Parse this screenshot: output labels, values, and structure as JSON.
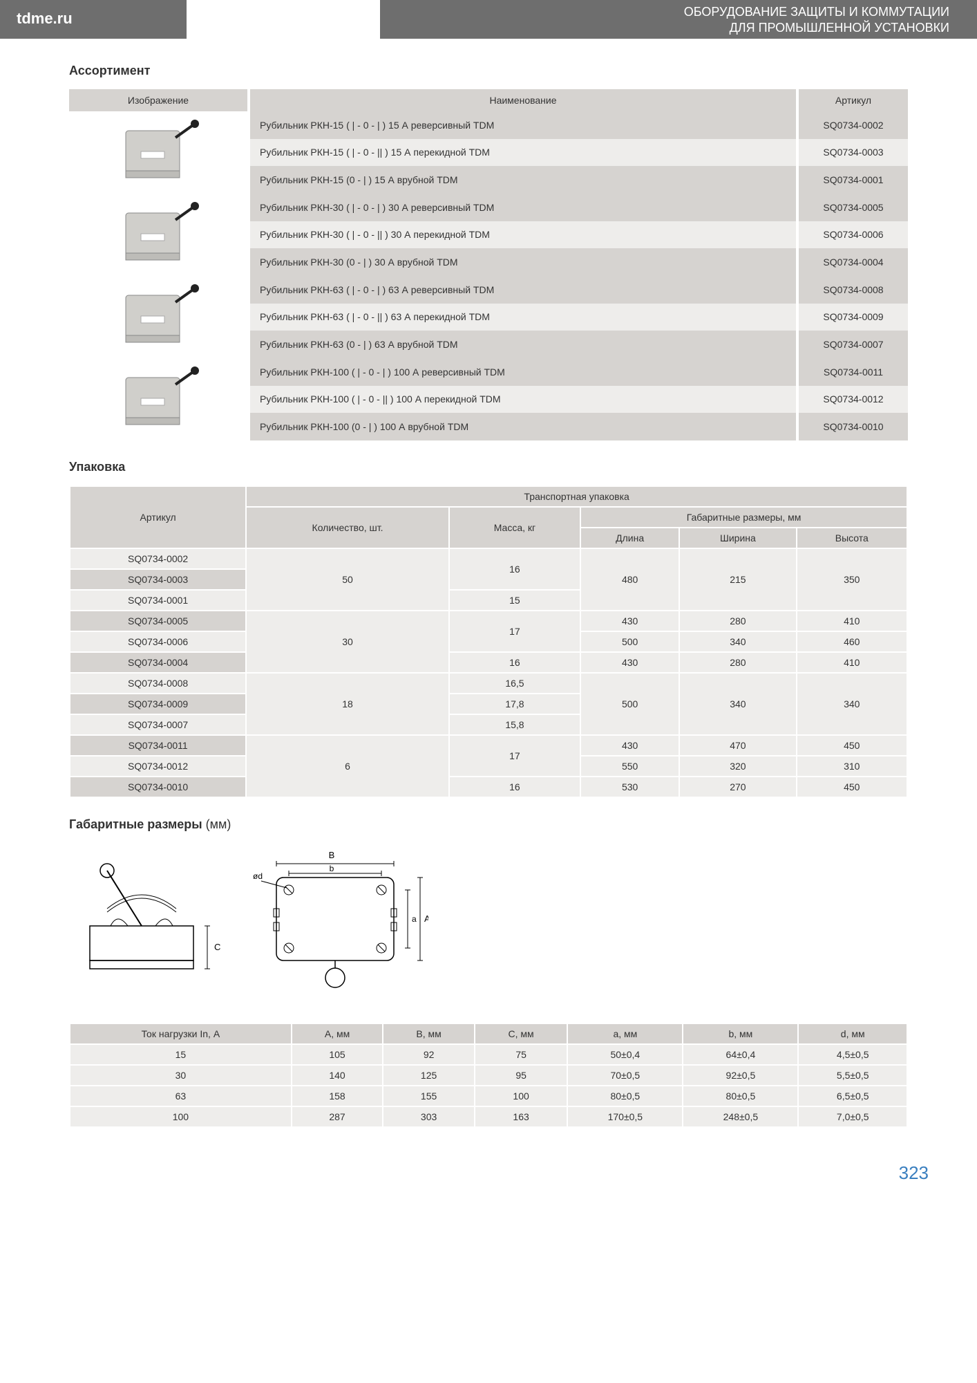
{
  "header": {
    "site": "tdme.ru",
    "line1": "ОБОРУДОВАНИЕ ЗАЩИТЫ И КОММУТАЦИИ",
    "line2": "ДЛЯ ПРОМЫШЛЕННОЙ УСТАНОВКИ"
  },
  "sections": {
    "assortment": "Ассортимент",
    "packaging": "Упаковка",
    "dimensions": "Габаритные размеры",
    "dimensions_unit": "(мм)"
  },
  "assortment": {
    "headers": {
      "image": "Изображение",
      "name": "Наименование",
      "sku": "Артикул"
    },
    "groups": [
      {
        "rows": [
          {
            "name": "Рубильник РКН-15  ( | - 0 - | ) 15 А  реверсивный TDM",
            "sku": "SQ0734-0002"
          },
          {
            "name": "Рубильник РКН-15  ( | - 0 - || ) 15 А перекидной TDM",
            "sku": "SQ0734-0003"
          },
          {
            "name": "Рубильник РКН-15  (0 - | ) 15 А врубной TDM",
            "sku": "SQ0734-0001"
          }
        ]
      },
      {
        "rows": [
          {
            "name": "Рубильник РКН-30  ( | - 0 - | ) 30 А  реверсивный TDM",
            "sku": "SQ0734-0005"
          },
          {
            "name": "Рубильник РКН-30  ( | - 0 - || ) 30 А перекидной TDM",
            "sku": "SQ0734-0006"
          },
          {
            "name": "Рубильник РКН-30  (0 - | ) 30 А  врубной TDM",
            "sku": "SQ0734-0004"
          }
        ]
      },
      {
        "rows": [
          {
            "name": "Рубильник РКН-63  ( | - 0 - | ) 63 А  реверсивный TDM",
            "sku": "SQ0734-0008"
          },
          {
            "name": "Рубильник РКН-63  ( | - 0 - || ) 63 А перекидной TDM",
            "sku": "SQ0734-0009"
          },
          {
            "name": "Рубильник РКН-63  (0 - | ) 63 А  врубной TDM",
            "sku": "SQ0734-0007"
          }
        ]
      },
      {
        "rows": [
          {
            "name": "Рубильник РКН-100  ( | - 0 - | ) 100 А  реверсивный TDM",
            "sku": "SQ0734-0011"
          },
          {
            "name": "Рубильник РКН-100  ( | - 0 - || ) 100 А перекидной TDM",
            "sku": "SQ0734-0012"
          },
          {
            "name": "Рубильник РКН-100  (0 - | ) 100 А  врубной TDM",
            "sku": "SQ0734-0010"
          }
        ]
      }
    ]
  },
  "packaging": {
    "headers": {
      "sku": "Артикул",
      "transport": "Транспортная упаковка",
      "qty": "Количество, шт.",
      "mass": "Масса, кг",
      "dims": "Габаритные размеры, мм",
      "length": "Длина",
      "width": "Ширина",
      "height": "Высота"
    },
    "rows": [
      {
        "sku": "SQ0734-0002",
        "qty": "50",
        "qty_span": 3,
        "mass": "16",
        "mass_span": 2,
        "len": "480",
        "len_span": 3,
        "wid": "215",
        "wid_span": 3,
        "hei": "350",
        "hei_span": 3,
        "alt": false
      },
      {
        "sku": "SQ0734-0003",
        "alt": true
      },
      {
        "sku": "SQ0734-0001",
        "mass": "15",
        "mass_span": 1,
        "alt": false
      },
      {
        "sku": "SQ0734-0005",
        "qty": "30",
        "qty_span": 3,
        "mass": "17",
        "mass_span": 2,
        "len": "430",
        "len_span": 1,
        "wid": "280",
        "wid_span": 1,
        "hei": "410",
        "hei_span": 1,
        "alt": true
      },
      {
        "sku": "SQ0734-0006",
        "len": "500",
        "len_span": 1,
        "wid": "340",
        "wid_span": 1,
        "hei": "460",
        "hei_span": 1,
        "alt": false
      },
      {
        "sku": "SQ0734-0004",
        "mass": "16",
        "mass_span": 1,
        "len": "430",
        "len_span": 1,
        "wid": "280",
        "wid_span": 1,
        "hei": "410",
        "hei_span": 1,
        "alt": true
      },
      {
        "sku": "SQ0734-0008",
        "qty": "18",
        "qty_span": 3,
        "mass": "16,5",
        "mass_span": 1,
        "len": "500",
        "len_span": 3,
        "wid": "340",
        "wid_span": 3,
        "hei": "340",
        "hei_span": 3,
        "alt": false
      },
      {
        "sku": "SQ0734-0009",
        "mass": "17,8",
        "mass_span": 1,
        "alt": true
      },
      {
        "sku": "SQ0734-0007",
        "mass": "15,8",
        "mass_span": 1,
        "alt": false
      },
      {
        "sku": "SQ0734-0011",
        "qty": "6",
        "qty_span": 3,
        "mass": "17",
        "mass_span": 2,
        "len": "430",
        "len_span": 1,
        "wid": "470",
        "wid_span": 1,
        "hei": "450",
        "hei_span": 1,
        "alt": true
      },
      {
        "sku": "SQ0734-0012",
        "len": "550",
        "len_span": 1,
        "wid": "320",
        "wid_span": 1,
        "hei": "310",
        "hei_span": 1,
        "alt": false
      },
      {
        "sku": "SQ0734-0010",
        "mass": "16",
        "mass_span": 1,
        "len": "530",
        "len_span": 1,
        "wid": "270",
        "wid_span": 1,
        "hei": "450",
        "hei_span": 1,
        "alt": true
      }
    ]
  },
  "dimensions": {
    "headers": [
      "Ток нагрузки In, А",
      "A, мм",
      "B, мм",
      "C, мм",
      "a, мм",
      "b, мм",
      "d, мм"
    ],
    "rows": [
      [
        "15",
        "105",
        "92",
        "75",
        "50±0,4",
        "64±0,4",
        "4,5±0,5"
      ],
      [
        "30",
        "140",
        "125",
        "95",
        "70±0,5",
        "92±0,5",
        "5,5±0,5"
      ],
      [
        "63",
        "158",
        "155",
        "100",
        "80±0,5",
        "80±0,5",
        "6,5±0,5"
      ],
      [
        "100",
        "287",
        "303",
        "163",
        "170±0,5",
        "248±0,5",
        "7,0±0,5"
      ]
    ]
  },
  "diagram_labels": {
    "B": "B",
    "b": "b",
    "a": "a",
    "A": "A",
    "C": "C",
    "d": "ød"
  },
  "page_number": "323",
  "colors": {
    "header_bg": "#6e6e6e",
    "th_bg": "#d6d3d0",
    "td_bg": "#eeedeb",
    "page_num": "#3a7fbf"
  }
}
